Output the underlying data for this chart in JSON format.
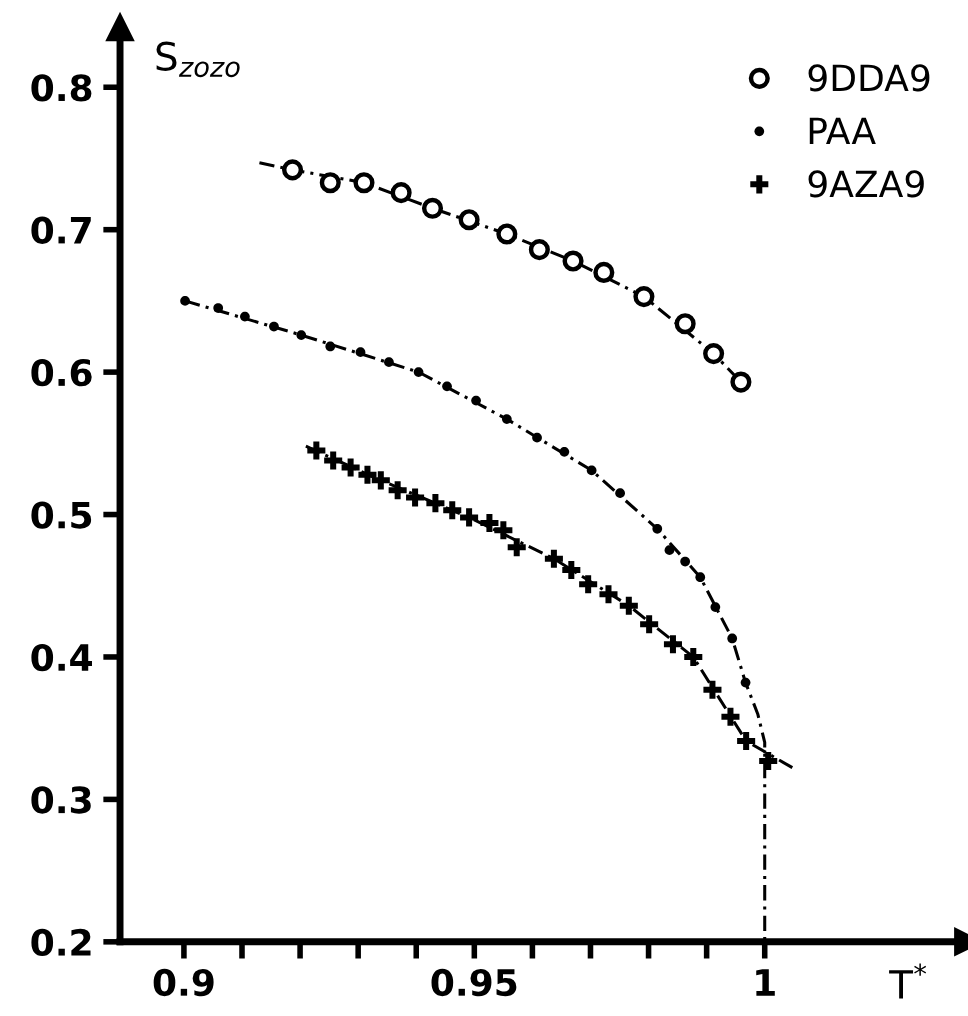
{
  "chart_data": {
    "type": "scatter",
    "xlabel": "T$^{*}$",
    "ylabel": "S$_{zozo}$",
    "xlim": [
      0.889,
      1.035
    ],
    "ylim": [
      0.2,
      0.842
    ],
    "xticks": [
      0.9,
      {
        "value": 0.91,
        "label": null
      },
      {
        "value": 0.92,
        "label": null
      },
      {
        "value": 0.93,
        "label": null
      },
      {
        "value": 0.94,
        "label": null
      },
      0.95,
      {
        "value": 0.96,
        "label": null
      },
      {
        "value": 0.97,
        "label": null
      },
      {
        "value": 0.98,
        "label": null
      },
      {
        "value": 0.99,
        "label": null
      },
      1
    ],
    "yticks": [
      0.2,
      0.3,
      0.4,
      0.5,
      0.6,
      0.7,
      0.8
    ],
    "grid": false,
    "legend": "top right",
    "series": [
      {
        "name": "9DDA9",
        "marker": "circle",
        "color": "#000000",
        "x": [
          0.9187,
          0.9252,
          0.931,
          0.9374,
          0.9428,
          0.9491,
          0.9556,
          0.9612,
          0.967,
          0.9723,
          0.9792,
          0.9863,
          0.9912,
          0.9959
        ],
        "values": [
          0.742,
          0.733,
          0.733,
          0.726,
          0.715,
          0.707,
          0.697,
          0.686,
          0.678,
          0.67,
          0.653,
          0.634,
          0.613,
          0.593
        ]
      },
      {
        "name": "PAA",
        "marker": "dot",
        "color": "#000000",
        "x": [
          0.9002,
          0.9059,
          0.9105,
          0.9155,
          0.9202,
          0.9252,
          0.9304,
          0.9353,
          0.9404,
          0.9453,
          0.9503,
          0.9556,
          0.9608,
          0.9655,
          0.9702,
          0.9751,
          0.9815,
          0.9836,
          0.9863,
          0.9889,
          0.9915,
          0.9944,
          0.9967
        ],
        "values": [
          0.65,
          0.645,
          0.639,
          0.632,
          0.626,
          0.618,
          0.614,
          0.607,
          0.6,
          0.59,
          0.58,
          0.567,
          0.554,
          0.544,
          0.531,
          0.515,
          0.49,
          0.475,
          0.467,
          0.456,
          0.435,
          0.413,
          0.382
        ]
      },
      {
        "name": "9AZA9",
        "marker": "plus",
        "color": "#000000",
        "x": [
          0.9228,
          0.9257,
          0.9287,
          0.9316,
          0.9339,
          0.9368,
          0.9398,
          0.9433,
          0.9462,
          0.9491,
          0.9526,
          0.955,
          0.9573,
          0.9637,
          0.9667,
          0.9696,
          0.9731,
          0.9766,
          0.9801,
          0.9842,
          0.9877,
          0.991,
          0.9941,
          0.9968,
          1.0006
        ],
        "values": [
          0.545,
          0.538,
          0.533,
          0.528,
          0.524,
          0.517,
          0.512,
          0.508,
          0.503,
          0.498,
          0.494,
          0.489,
          0.477,
          0.469,
          0.461,
          0.451,
          0.444,
          0.436,
          0.423,
          0.409,
          0.4,
          0.377,
          0.358,
          0.341,
          0.327
        ]
      },
      {
        "type": "line",
        "line_style": "dashed",
        "color": "#000000",
        "x": [
          0.913,
          0.9187,
          0.931,
          0.9428,
          0.9556,
          0.967,
          0.9792,
          0.9912,
          0.9959
        ],
        "values": [
          0.747,
          0.742,
          0.733,
          0.715,
          0.697,
          0.678,
          0.653,
          0.613,
          0.593
        ]
      },
      {
        "type": "line",
        "line_style": "dashed",
        "color": "#000000",
        "x": [
          0.9002,
          0.9202,
          0.9404,
          0.9556,
          0.9702,
          0.9815,
          0.9889,
          0.9944,
          0.9967,
          0.9988,
          1.0,
          1.0
        ],
        "values": [
          0.65,
          0.626,
          0.6,
          0.567,
          0.531,
          0.49,
          0.456,
          0.413,
          0.382,
          0.36,
          0.34,
          0.2
        ]
      },
      {
        "type": "line",
        "line_style": "dashed",
        "color": "#000000",
        "x": [
          0.921,
          0.9339,
          0.9491,
          0.9637,
          0.9766,
          0.9877,
          0.9968,
          1.0053
        ],
        "values": [
          0.548,
          0.524,
          0.498,
          0.469,
          0.436,
          0.4,
          0.341,
          0.321
        ]
      }
    ]
  }
}
